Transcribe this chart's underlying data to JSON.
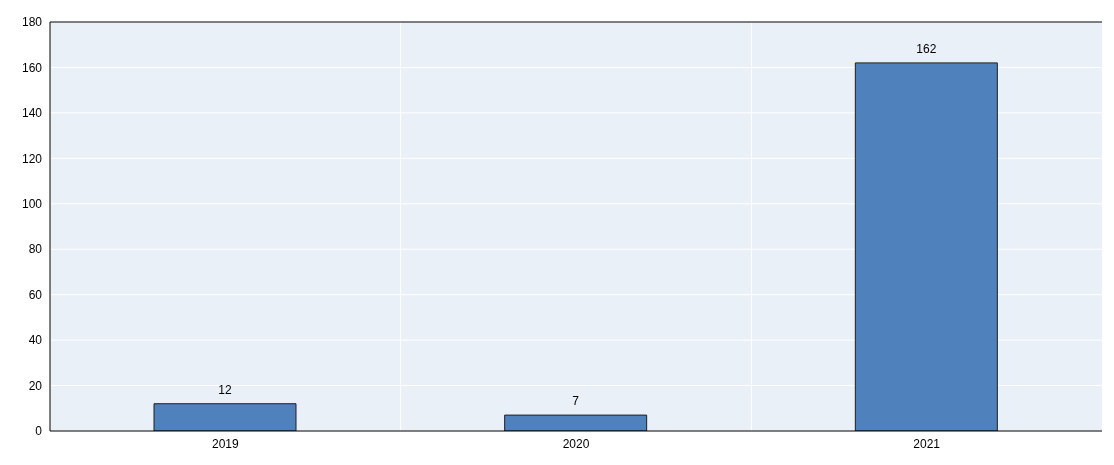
{
  "chart_data": {
    "type": "bar",
    "categories": [
      "2019",
      "2020",
      "2021"
    ],
    "values": [
      12,
      7,
      162
    ],
    "color": "#4f81bd",
    "ylim": [
      0,
      180
    ],
    "yticks": [
      0,
      20,
      40,
      60,
      80,
      100,
      120,
      140,
      160,
      180
    ],
    "grid": true,
    "data_labels": true
  }
}
